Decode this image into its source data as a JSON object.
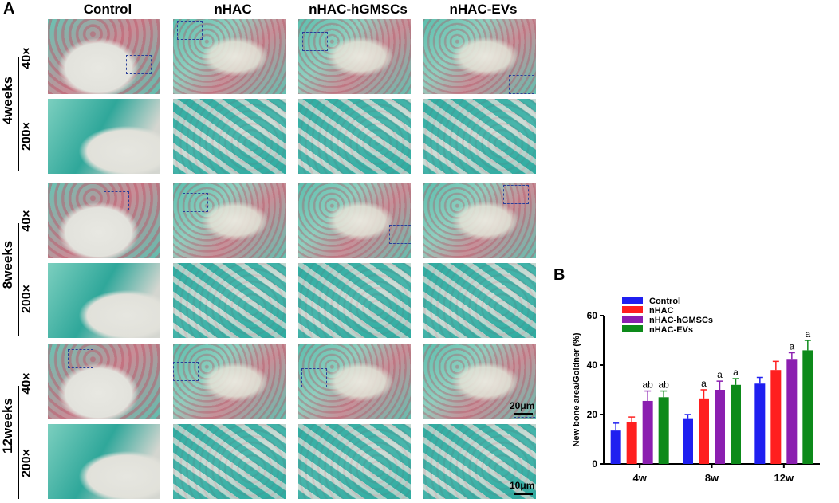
{
  "panel_a": {
    "label": "A",
    "columns": [
      "Control",
      "nHAC",
      "nHAC-hGMSCs",
      "nHAC-EVs"
    ],
    "rows": [
      {
        "time": "4weeks",
        "mag_low": "40×",
        "mag_high": "200×"
      },
      {
        "time": "8weeks",
        "mag_low": "40×",
        "mag_high": "200×"
      },
      {
        "time": "12weeks",
        "mag_low": "40×",
        "mag_high": "200×"
      }
    ],
    "scale_bars": {
      "low": "20μm",
      "high": "10μm"
    }
  },
  "panel_b": {
    "label": "B",
    "chart_data": {
      "type": "bar",
      "title": "",
      "xlabel": "",
      "ylabel": "New bone area/Goldner (%)",
      "ylim": [
        0,
        60
      ],
      "yticks": [
        0,
        20,
        40,
        60
      ],
      "categories": [
        "4w",
        "8w",
        "12w"
      ],
      "legend_position": "top-left",
      "grid": false,
      "series": [
        {
          "name": "Control",
          "color": "#1f1ff0",
          "values": [
            13.5,
            18.5,
            32.5
          ],
          "errors": [
            3.0,
            1.5,
            2.5
          ],
          "annotations": [
            "",
            "",
            ""
          ]
        },
        {
          "name": "nHAC",
          "color": "#ff1f1f",
          "values": [
            17.0,
            26.5,
            38.0
          ],
          "errors": [
            2.0,
            3.5,
            3.5
          ],
          "annotations": [
            "",
            "a",
            ""
          ]
        },
        {
          "name": "nHAC-hGMSCs",
          "color": "#8b1fb0",
          "values": [
            25.5,
            30.0,
            42.5
          ],
          "errors": [
            4.0,
            3.5,
            2.5
          ],
          "annotations": [
            "ab",
            "a",
            "a"
          ]
        },
        {
          "name": "nHAC-EVs",
          "color": "#0d8a1a",
          "values": [
            27.0,
            32.0,
            46.0
          ],
          "errors": [
            2.5,
            2.5,
            4.0
          ],
          "annotations": [
            "ab",
            "a",
            "a"
          ]
        }
      ]
    }
  }
}
